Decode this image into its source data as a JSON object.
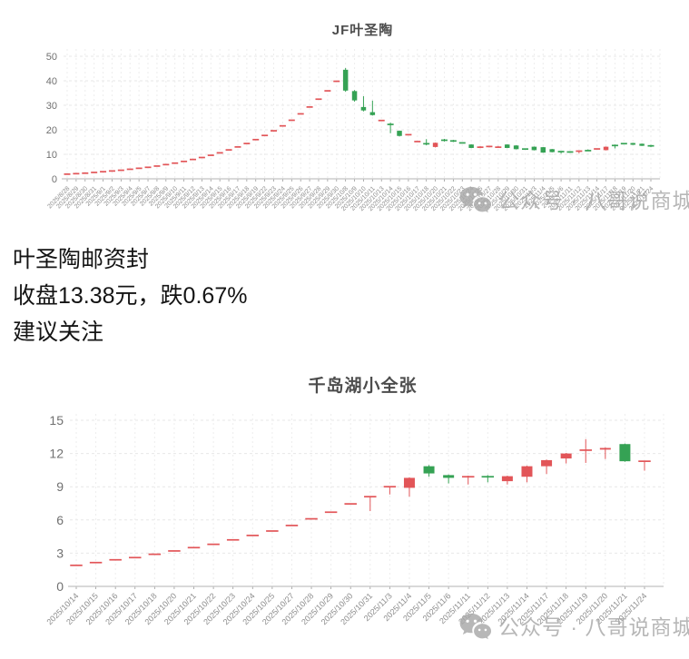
{
  "watermark": {
    "icon": "wechat-icon",
    "text": "公众号 · 八哥说商城"
  },
  "summary": {
    "line1": "叶圣陶邮资封",
    "line2": "收盘13.38元，跌0.67%",
    "line3": "建议关注"
  },
  "colors": {
    "up": "#e25558",
    "down": "#35a254",
    "grid": "#e7e7e7",
    "vgrid": "#ededed",
    "axis": "#c2c2c2",
    "ylabel": "#707070",
    "xlabel": "#8c8c8c",
    "title": "#4c4c4c",
    "watermark": "#a8a8a8"
  },
  "chart_data": [
    {
      "type": "candlestick",
      "title": "JF叶圣陶",
      "xlabel": "",
      "ylabel": "",
      "ylim": [
        0,
        50
      ],
      "yticks": [
        0,
        10,
        20,
        30,
        40,
        50
      ],
      "grid": true,
      "color_convention": "red=up, green=down",
      "dates": [
        "2025/8/28",
        "2025/8/29",
        "2025/8/30",
        "2025/8/31",
        "2025/9/1",
        "2025/9/2",
        "2025/9/3",
        "2025/9/4",
        "2025/9/5",
        "2025/9/7",
        "2025/9/8",
        "2025/9/9",
        "2025/9/10",
        "2025/9/11",
        "2025/9/12",
        "2025/9/13",
        "2025/9/14",
        "2025/9/15",
        "2025/9/16",
        "2025/9/17",
        "2025/9/18",
        "2025/9/19",
        "2025/9/22",
        "2025/9/23",
        "2025/9/24",
        "2025/9/25",
        "2025/9/26",
        "2025/9/27",
        "2025/9/28",
        "2025/9/29",
        "2025/9/30",
        "2025/10/8",
        "2025/10/9",
        "2025/10/10",
        "2025/10/11",
        "2025/10/13",
        "2025/10/14",
        "2025/10/15",
        "2025/10/16",
        "2025/10/17",
        "2025/10/18",
        "2025/10/20",
        "2025/10/21",
        "2025/10/22",
        "2025/10/23",
        "2025/10/24",
        "2025/10/25",
        "2025/10/27",
        "2025/10/28",
        "2025/10/29",
        "2025/10/30",
        "2025/10/31",
        "2025/11/3",
        "2025/11/4",
        "2025/11/5",
        "2025/11/6",
        "2025/11/11",
        "2025/11/12",
        "2025/11/13",
        "2025/11/14",
        "2025/11/17",
        "2025/11/18",
        "2025/11/19",
        "2025/11/20",
        "2025/11/21",
        "2025/11/24"
      ],
      "ohlc": [
        [
          1.9,
          1.9,
          1.9,
          1.9
        ],
        [
          2.1,
          2.1,
          2.1,
          2.1
        ],
        [
          2.3,
          2.3,
          2.3,
          2.3
        ],
        [
          2.6,
          2.6,
          2.6,
          2.6
        ],
        [
          2.9,
          2.9,
          2.9,
          2.9
        ],
        [
          3.2,
          3.2,
          3.2,
          3.2
        ],
        [
          3.5,
          3.5,
          3.5,
          3.5
        ],
        [
          3.9,
          3.9,
          3.9,
          3.9
        ],
        [
          4.3,
          4.3,
          4.3,
          4.3
        ],
        [
          4.7,
          4.7,
          4.7,
          4.7
        ],
        [
          5.2,
          5.2,
          5.2,
          5.2
        ],
        [
          5.8,
          5.8,
          5.8,
          5.8
        ],
        [
          6.4,
          6.4,
          6.4,
          6.4
        ],
        [
          7.1,
          7.1,
          7.1,
          7.1
        ],
        [
          7.9,
          7.9,
          7.9,
          7.9
        ],
        [
          8.7,
          8.7,
          8.7,
          8.7
        ],
        [
          9.6,
          9.6,
          9.6,
          9.6
        ],
        [
          10.6,
          10.6,
          10.6,
          10.6
        ],
        [
          11.8,
          11.8,
          11.8,
          11.8
        ],
        [
          13.0,
          13.0,
          13.0,
          13.0
        ],
        [
          14.4,
          14.4,
          14.4,
          14.4
        ],
        [
          16.0,
          16.0,
          16.0,
          16.0
        ],
        [
          17.7,
          17.7,
          17.7,
          17.7
        ],
        [
          19.6,
          19.6,
          19.6,
          19.6
        ],
        [
          21.6,
          21.6,
          21.6,
          21.6
        ],
        [
          23.9,
          23.9,
          23.9,
          23.9
        ],
        [
          26.5,
          26.5,
          26.5,
          26.5
        ],
        [
          29.3,
          29.3,
          29.3,
          29.3
        ],
        [
          32.5,
          32.5,
          32.5,
          32.5
        ],
        [
          35.9,
          35.9,
          35.9,
          35.9
        ],
        [
          39.8,
          39.8,
          39.8,
          39.8
        ],
        [
          44.5,
          45.2,
          35.5,
          36.0
        ],
        [
          35.8,
          36.2,
          31.5,
          32.0
        ],
        [
          29.3,
          33.7,
          27.5,
          27.9
        ],
        [
          27.2,
          31.9,
          25.8,
          26.0
        ],
        [
          23.8,
          23.9,
          23.6,
          23.8
        ],
        [
          22.2,
          22.9,
          18.6,
          21.9
        ],
        [
          19.6,
          19.7,
          17.3,
          17.5
        ],
        [
          18.0,
          18.1,
          17.8,
          18.0
        ],
        [
          15.2,
          15.3,
          15.0,
          15.2
        ],
        [
          14.3,
          16.2,
          13.7,
          14.0
        ],
        [
          13.0,
          14.8,
          12.8,
          14.7
        ],
        [
          15.75,
          16.3,
          15.2,
          15.7
        ],
        [
          15.45,
          15.9,
          15.0,
          15.4
        ],
        [
          14.65,
          14.75,
          14.5,
          14.6
        ],
        [
          14.0,
          14.1,
          12.5,
          12.6
        ],
        [
          12.85,
          13.3,
          12.5,
          12.9
        ],
        [
          12.9,
          13.35,
          12.8,
          13.2
        ],
        [
          12.85,
          13.4,
          12.6,
          12.9
        ],
        [
          14.0,
          14.1,
          12.5,
          12.6
        ],
        [
          13.6,
          13.7,
          12.0,
          12.1
        ],
        [
          12.15,
          12.25,
          12.0,
          12.1
        ],
        [
          13.1,
          13.2,
          11.6,
          11.7
        ],
        [
          12.9,
          13.0,
          10.6,
          10.7
        ],
        [
          12.1,
          12.2,
          10.8,
          10.9
        ],
        [
          11.1,
          11.2,
          10.3,
          10.5
        ],
        [
          10.95,
          11.3,
          10.6,
          10.9
        ],
        [
          11.25,
          11.5,
          10.4,
          11.3
        ],
        [
          11.5,
          12.0,
          11.3,
          11.4
        ],
        [
          12.15,
          12.3,
          12.0,
          12.2
        ],
        [
          11.7,
          13.2,
          11.6,
          13.1
        ],
        [
          13.6,
          14.0,
          12.4,
          13.0
        ],
        [
          14.35,
          14.45,
          14.2,
          14.3
        ],
        [
          14.6,
          14.7,
          13.8,
          13.9
        ],
        [
          14.3,
          14.4,
          13.4,
          13.47
        ],
        [
          13.45,
          13.9,
          12.9,
          13.38
        ]
      ]
    },
    {
      "type": "candlestick",
      "title": "千岛湖小全张",
      "xlabel": "",
      "ylabel": "",
      "ylim": [
        0,
        15
      ],
      "yticks": [
        0,
        3,
        6,
        9,
        12,
        15
      ],
      "grid": true,
      "color_convention": "red=up, green=down",
      "dates": [
        "2025/10/14",
        "2025/10/15",
        "2025/10/16",
        "2025/10/17",
        "2025/10/18",
        "2025/10/20",
        "2025/10/21",
        "2025/10/22",
        "2025/10/23",
        "2025/10/24",
        "2025/10/25",
        "2025/10/27",
        "2025/10/28",
        "2025/10/29",
        "2025/10/30",
        "2025/10/31",
        "2025/11/3",
        "2025/11/4",
        "2025/11/5",
        "2025/11/6",
        "2025/11/11",
        "2025/11/12",
        "2025/11/13",
        "2025/11/14",
        "2025/11/17",
        "2025/11/18",
        "2025/11/19",
        "2025/11/20",
        "2025/11/21",
        "2025/11/24"
      ],
      "ohlc": [
        [
          1.9,
          1.9,
          1.9,
          1.9
        ],
        [
          2.15,
          2.15,
          2.15,
          2.15
        ],
        [
          2.4,
          2.4,
          2.4,
          2.4
        ],
        [
          2.6,
          2.6,
          2.6,
          2.6
        ],
        [
          2.9,
          2.9,
          2.9,
          2.9
        ],
        [
          3.2,
          3.2,
          3.2,
          3.2
        ],
        [
          3.5,
          3.5,
          3.5,
          3.5
        ],
        [
          3.8,
          3.8,
          3.8,
          3.8
        ],
        [
          4.2,
          4.2,
          4.2,
          4.2
        ],
        [
          4.6,
          4.6,
          4.6,
          4.6
        ],
        [
          5.0,
          5.0,
          5.0,
          5.0
        ],
        [
          5.5,
          5.5,
          5.5,
          5.5
        ],
        [
          6.1,
          6.1,
          6.1,
          6.1
        ],
        [
          6.7,
          6.7,
          6.7,
          6.7
        ],
        [
          7.45,
          7.45,
          7.45,
          7.45
        ],
        [
          8.05,
          8.15,
          6.8,
          8.1
        ],
        [
          8.95,
          9.05,
          8.3,
          9.0
        ],
        [
          8.9,
          9.85,
          8.1,
          9.8
        ],
        [
          10.85,
          10.95,
          9.9,
          10.2
        ],
        [
          10.05,
          10.1,
          9.3,
          9.8
        ],
        [
          9.85,
          10.0,
          9.2,
          9.9
        ],
        [
          9.9,
          10.05,
          9.4,
          9.85
        ],
        [
          9.5,
          10.0,
          9.2,
          9.95
        ],
        [
          9.9,
          10.9,
          9.4,
          10.85
        ],
        [
          10.85,
          11.45,
          10.15,
          11.4
        ],
        [
          11.55,
          12.05,
          11.1,
          12.0
        ],
        [
          12.2,
          13.3,
          11.15,
          12.3
        ],
        [
          12.35,
          12.55,
          11.5,
          12.5
        ],
        [
          12.85,
          12.9,
          11.25,
          11.3
        ],
        [
          11.3,
          11.35,
          10.45,
          11.3
        ]
      ]
    }
  ]
}
